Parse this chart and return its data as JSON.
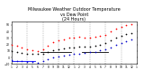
{
  "title": "Milwaukee Weather Outdoor Temperature\nvs Dew Point\n(24 Hours)",
  "title_fontsize": 3.5,
  "background_color": "#ffffff",
  "plot_bg_color": "#ffffff",
  "grid_color": "#888888",
  "x_labels": [
    "1",
    "2",
    "3",
    "4",
    "5",
    "6",
    "7",
    "8",
    "9",
    "10",
    "11",
    "12",
    "1",
    "2",
    "3",
    "4",
    "5",
    "6",
    "7",
    "8",
    "9",
    "10",
    "11",
    "12",
    "1"
  ],
  "x_tick_fontsize": 2.2,
  "y_tick_fontsize": 2.2,
  "ylim": [
    -10,
    55
  ],
  "xlim": [
    0,
    24
  ],
  "vgrid_positions": [
    3,
    6,
    9,
    12,
    15,
    18,
    21
  ],
  "temp_x": [
    0,
    1,
    2,
    3,
    4,
    5,
    6,
    7,
    8,
    9,
    10,
    11,
    12,
    13,
    14,
    15,
    16,
    17,
    18,
    19,
    20,
    21,
    22,
    23
  ],
  "temp_y": [
    20,
    18,
    16,
    13,
    11,
    10,
    12,
    18,
    23,
    26,
    28,
    30,
    31,
    32,
    31,
    30,
    32,
    33,
    35,
    40,
    44,
    47,
    50,
    52
  ],
  "dew_x": [
    0,
    1,
    2,
    3,
    4,
    5,
    6,
    7,
    8,
    9,
    10,
    11,
    12,
    13,
    14,
    15,
    16,
    17,
    18,
    19,
    20,
    21,
    22,
    23
  ],
  "dew_y": [
    -4,
    -5,
    -6,
    -7,
    -7,
    -8,
    -6,
    -3,
    0,
    2,
    3,
    4,
    5,
    6,
    7,
    8,
    9,
    11,
    13,
    16,
    20,
    22,
    25,
    28
  ],
  "black_x": [
    0,
    1,
    2,
    3,
    4,
    5,
    6,
    7,
    8,
    9,
    10,
    11,
    12,
    13,
    14,
    15,
    16,
    17,
    18,
    19,
    20,
    21,
    22,
    23
  ],
  "black_y": [
    10,
    8,
    7,
    6,
    5,
    5,
    6,
    8,
    11,
    13,
    14,
    15,
    16,
    17,
    17,
    17,
    18,
    20,
    22,
    26,
    30,
    33,
    36,
    38
  ],
  "hline1_x": [
    5.5,
    11.5
  ],
  "hline1_y": [
    8,
    8
  ],
  "hline2_x": [
    13.5,
    18.5
  ],
  "hline2_y": [
    8,
    8
  ],
  "blue_hline_x": [
    0,
    4.5
  ],
  "blue_hline_y": [
    -6,
    -6
  ],
  "temp_color": "#ff0000",
  "dew_color": "#0000cc",
  "black_color": "#000000",
  "hline_color": "#000000",
  "blue_hline_color": "#0000ff",
  "marker_size": 1.5,
  "y_ticks": [
    -10,
    0,
    10,
    20,
    30,
    40,
    50
  ]
}
